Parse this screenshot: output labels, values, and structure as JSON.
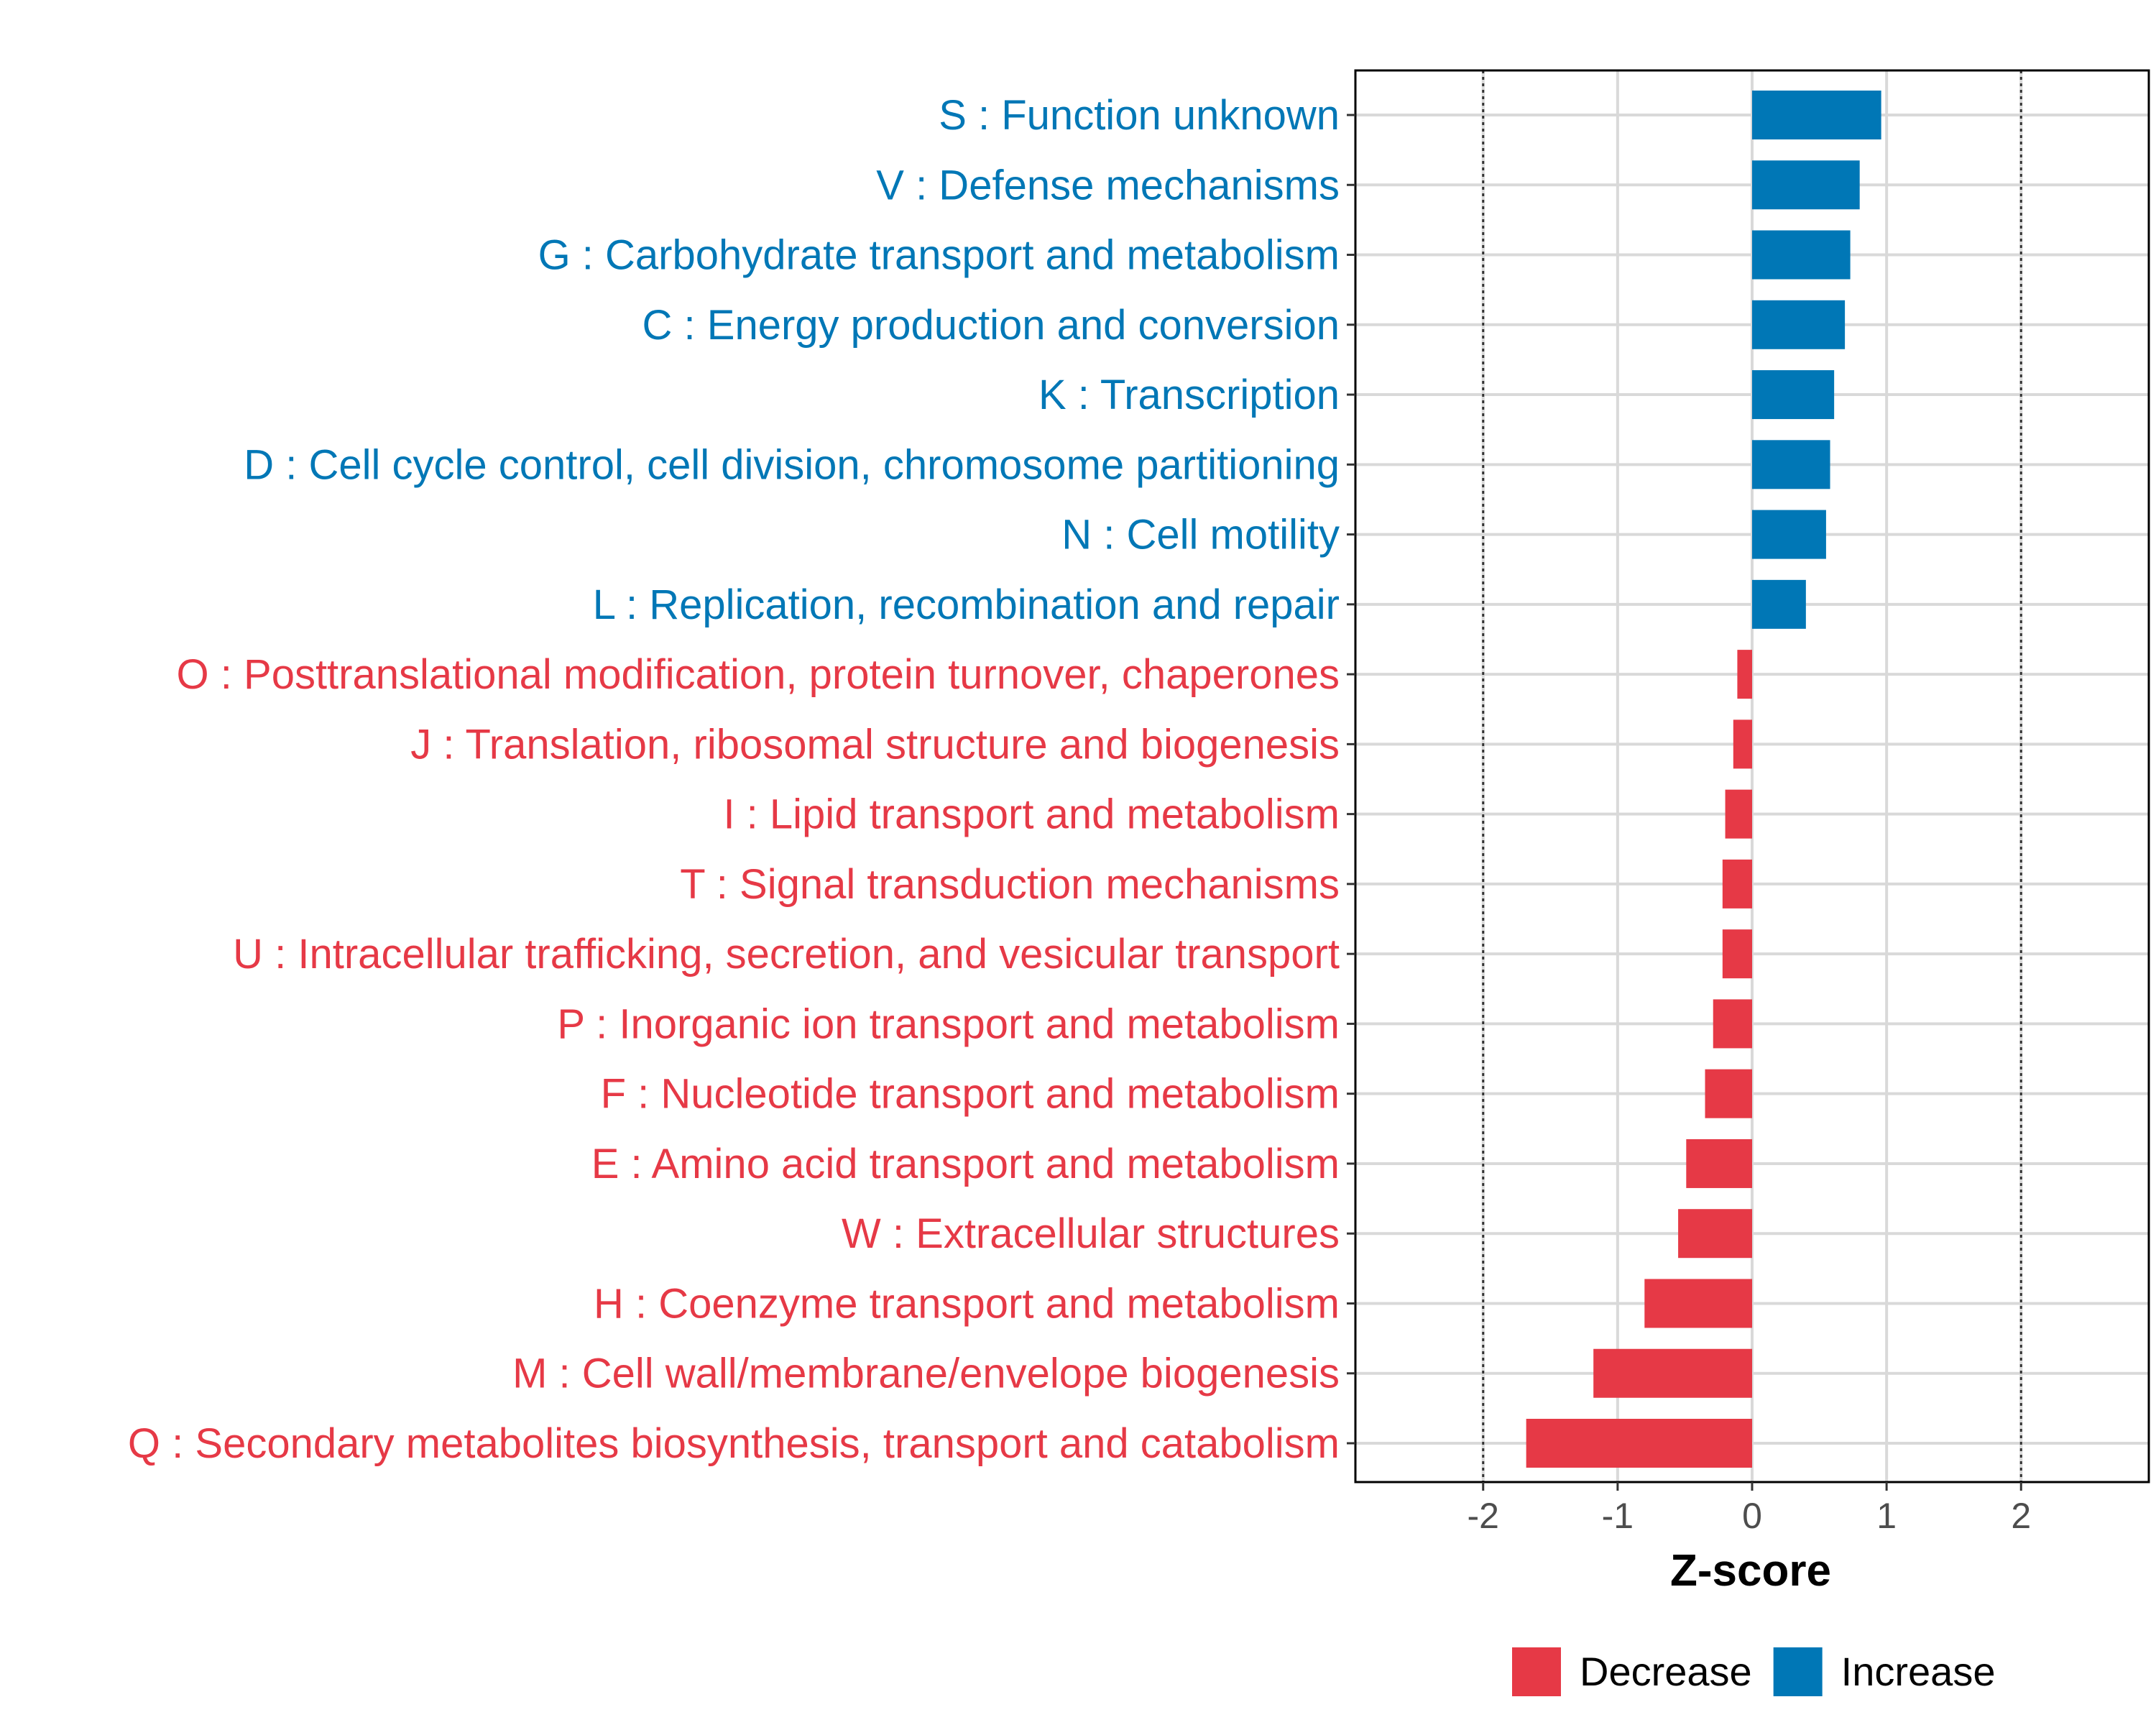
{
  "chart_data": {
    "type": "bar",
    "orientation": "horizontal",
    "title": "",
    "xlabel": "Z-score",
    "ylabel": "",
    "xlim": [
      -2.95,
      2.95
    ],
    "xticks": [
      -2,
      -1,
      0,
      1,
      2
    ],
    "xtick_labels": [
      "-2",
      "-1",
      "0",
      "1",
      "2"
    ],
    "reference_lines": [
      -2,
      2
    ],
    "grid": true,
    "legend_position": "bottom",
    "colors": {
      "Decrease": "#E63946",
      "Increase": "#0077B6"
    },
    "legend": [
      {
        "label": "Decrease",
        "color": "#E63946"
      },
      {
        "label": "Increase",
        "color": "#0077B6"
      }
    ],
    "categories": [
      "S : Function unknown",
      "V : Defense mechanisms",
      "G : Carbohydrate transport and metabolism",
      "C : Energy production and conversion",
      "K : Transcription",
      "D : Cell cycle control, cell division, chromosome partitioning",
      "N : Cell motility",
      "L : Replication, recombination and repair",
      "O : Posttranslational modification, protein turnover, chaperones",
      "J : Translation, ribosomal structure and biogenesis",
      "I : Lipid transport and metabolism",
      "T : Signal transduction mechanisms",
      "U : Intracellular trafficking, secretion, and vesicular transport",
      "P : Inorganic ion transport and metabolism",
      "F : Nucleotide transport and metabolism",
      "E : Amino acid transport and metabolism",
      "W : Extracellular structures",
      "H : Coenzyme transport and metabolism",
      "M : Cell wall/membrane/envelope biogenesis",
      "Q : Secondary metabolites biosynthesis, transport and catabolism"
    ],
    "values": [
      0.96,
      0.8,
      0.73,
      0.69,
      0.61,
      0.58,
      0.55,
      0.4,
      -0.11,
      -0.14,
      -0.2,
      -0.22,
      -0.22,
      -0.29,
      -0.35,
      -0.49,
      -0.55,
      -0.8,
      -1.18,
      -1.68
    ],
    "direction": [
      "Increase",
      "Increase",
      "Increase",
      "Increase",
      "Increase",
      "Increase",
      "Increase",
      "Increase",
      "Decrease",
      "Decrease",
      "Decrease",
      "Decrease",
      "Decrease",
      "Decrease",
      "Decrease",
      "Decrease",
      "Decrease",
      "Decrease",
      "Decrease",
      "Decrease"
    ]
  }
}
